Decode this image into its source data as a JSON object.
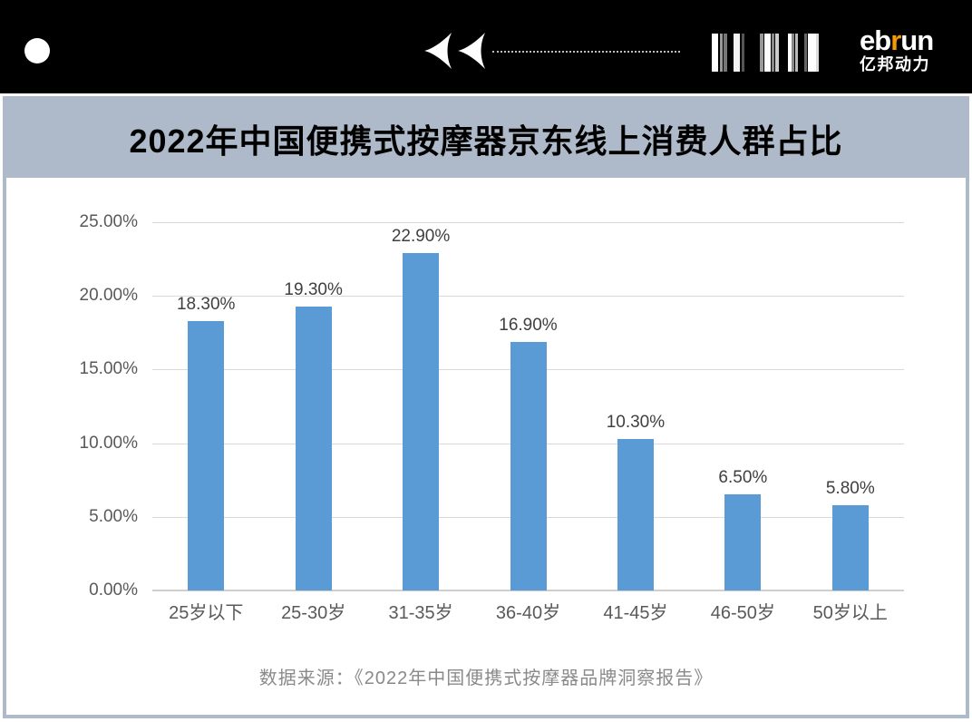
{
  "header": {
    "icons": {
      "circle": "record-dot-icon",
      "arrows": "rewind-arrows-icon",
      "dotted_line": "dotted-divider",
      "barcode": "barcode-icon"
    },
    "barcode_bars": [
      [
        0,
        7,
        "#ffffff"
      ],
      [
        9,
        3,
        "#999999"
      ],
      [
        13,
        4,
        "#777777"
      ],
      [
        24,
        7,
        "#f2f2f2"
      ],
      [
        33,
        3,
        "#555555"
      ],
      [
        53,
        4,
        "#999999"
      ],
      [
        58,
        7,
        "#ffffff"
      ],
      [
        66,
        3,
        "#888888"
      ],
      [
        70,
        4,
        "#cccccc"
      ],
      [
        84,
        4,
        "#ffffff"
      ],
      [
        88,
        3,
        "#888888"
      ],
      [
        92,
        3,
        "#bbbbbb"
      ],
      [
        102,
        3,
        "#666666"
      ],
      [
        106,
        9,
        "#ffffff"
      ],
      [
        115,
        3,
        "#dddddd"
      ]
    ],
    "logo": {
      "part1": "eb",
      "accent": "r",
      "part2": "un",
      "subtitle": "亿邦动力",
      "accent_color": "#f59a00"
    }
  },
  "title_bar": {
    "title": "2022年中国便携式按摩器京东线上消费人群占比",
    "bg_color": "#aebaca"
  },
  "chart_data": {
    "type": "bar",
    "title": "2022年中国便携式按摩器京东线上消费人群占比",
    "categories": [
      "25岁以下",
      "25-30岁",
      "31-35岁",
      "36-40岁",
      "41-45岁",
      "46-50岁",
      "50岁以上"
    ],
    "values": [
      18.3,
      19.3,
      22.9,
      16.9,
      10.3,
      6.5,
      5.8
    ],
    "value_labels": [
      "18.30%",
      "19.30%",
      "22.90%",
      "16.90%",
      "10.30%",
      "6.50%",
      "5.80%"
    ],
    "ylim": [
      0,
      25
    ],
    "yticks": [
      0,
      5,
      10,
      15,
      20,
      25
    ],
    "ytick_labels": [
      "0.00%",
      "5.00%",
      "10.00%",
      "15.00%",
      "20.00%",
      "25.00%"
    ],
    "xlabel": "",
    "ylabel": "",
    "grid": true,
    "legend": "none",
    "bar_color": "#5b9bd5",
    "gridline_color": "#d9d9d9",
    "tick_text_color": "#595959",
    "value_label_color": "#3f3f3f"
  },
  "footer": {
    "source": "数据来源：《2022年中国便携式按摩器品牌洞察报告》"
  }
}
